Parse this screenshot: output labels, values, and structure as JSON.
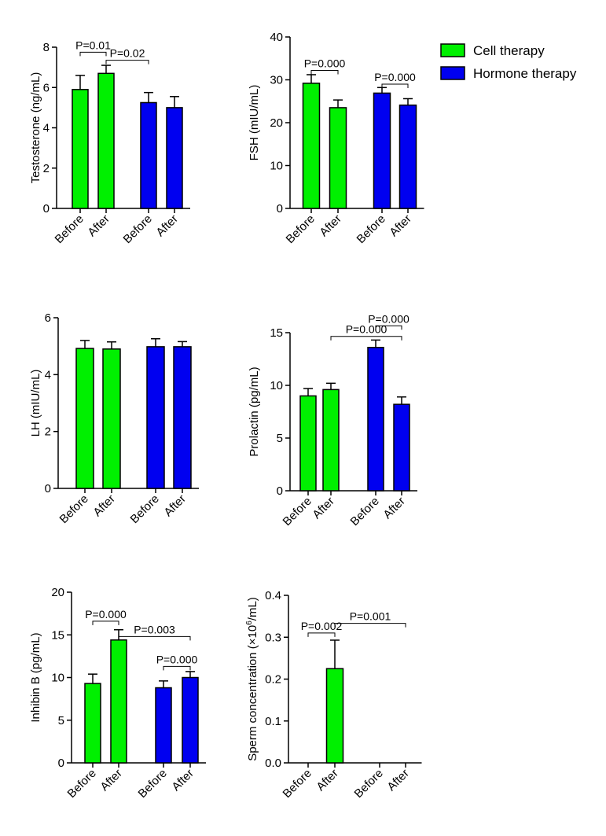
{
  "colors": {
    "cell": "#00f000",
    "hormone": "#0000f0",
    "ink": "#000000"
  },
  "legend": [
    {
      "label": "Cell therapy",
      "series": "cell"
    },
    {
      "label": "Hormone therapy",
      "series": "hormone"
    }
  ],
  "chart_data": [
    {
      "type": "bar",
      "ylabel": "Testosterone (ng/mL)",
      "categories": [
        "Before",
        "After",
        "Before",
        "After"
      ],
      "groups": [
        "cell",
        "cell",
        "hormone",
        "hormone"
      ],
      "values": [
        5.9,
        6.7,
        5.25,
        5.0
      ],
      "errors": [
        0.7,
        0.4,
        0.5,
        0.55
      ],
      "ylim": [
        0,
        8
      ],
      "yticks": [
        0,
        2,
        4,
        6,
        8
      ],
      "yticklabels": [
        "0",
        "2",
        "4",
        "6",
        "8"
      ],
      "annotations": [
        {
          "label": "P=0.01",
          "from": 0,
          "to": 1,
          "y": 7.75
        },
        {
          "label": "P=0.02",
          "from": 1,
          "to": 2,
          "y": 7.35
        }
      ]
    },
    {
      "type": "bar",
      "ylabel": "FSH (mIU/mL)",
      "categories": [
        "Before",
        "After",
        "Before",
        "After"
      ],
      "groups": [
        "cell",
        "cell",
        "hormone",
        "hormone"
      ],
      "values": [
        29.2,
        23.5,
        26.9,
        24.1
      ],
      "errors": [
        2.0,
        1.8,
        1.3,
        1.5
      ],
      "ylim": [
        0,
        40
      ],
      "yticks": [
        0,
        10,
        20,
        30,
        40
      ],
      "yticklabels": [
        "0",
        "10",
        "20",
        "30",
        "40"
      ],
      "annotations": [
        {
          "label": "P=0.000",
          "from": 0,
          "to": 1,
          "y": 32.2
        },
        {
          "label": "P=0.000",
          "from": 2,
          "to": 3,
          "y": 29.0
        }
      ]
    },
    {
      "type": "bar",
      "ylabel": "LH (mIU/mL)",
      "categories": [
        "Before",
        "After",
        "Before",
        "After"
      ],
      "groups": [
        "cell",
        "cell",
        "hormone",
        "hormone"
      ],
      "values": [
        4.92,
        4.9,
        4.98,
        4.98
      ],
      "errors": [
        0.28,
        0.25,
        0.28,
        0.18
      ],
      "ylim": [
        0,
        6
      ],
      "yticks": [
        0,
        2,
        4,
        6
      ],
      "yticklabels": [
        "0",
        "2",
        "4",
        "6"
      ],
      "annotations": []
    },
    {
      "type": "bar",
      "ylabel": "Prolactin (pg/mL)",
      "categories": [
        "Before",
        "After",
        "Before",
        "After"
      ],
      "groups": [
        "cell",
        "cell",
        "hormone",
        "hormone"
      ],
      "values": [
        9.0,
        9.6,
        13.6,
        8.2
      ],
      "errors": [
        0.7,
        0.6,
        0.7,
        0.7
      ],
      "ylim": [
        0,
        15
      ],
      "yticks": [
        0,
        5,
        10,
        15
      ],
      "yticklabels": [
        "0",
        "5",
        "10",
        "15"
      ],
      "annotations": [
        {
          "label": "P=0.000",
          "from": 1,
          "to": 3,
          "y": 14.65
        },
        {
          "label": "P=0.000",
          "from": 2,
          "to": 3,
          "y": 15.65
        }
      ]
    },
    {
      "type": "bar",
      "ylabel": "Inhibin B (pg/mL)",
      "categories": [
        "Before",
        "After",
        "Before",
        "After"
      ],
      "groups": [
        "cell",
        "cell",
        "hormone",
        "hormone"
      ],
      "values": [
        9.3,
        14.4,
        8.8,
        10.0
      ],
      "errors": [
        1.1,
        1.2,
        0.8,
        0.7
      ],
      "ylim": [
        0,
        20
      ],
      "yticks": [
        0,
        5,
        10,
        15,
        20
      ],
      "yticklabels": [
        "0",
        "5",
        "10",
        "15",
        "20"
      ],
      "annotations": [
        {
          "label": "P=0.000",
          "from": 0,
          "to": 1,
          "y": 16.6
        },
        {
          "label": "P=0.003",
          "from": 1,
          "to": 3,
          "y": 14.8
        },
        {
          "label": "P=0.000",
          "from": 2,
          "to": 3,
          "y": 11.3
        }
      ]
    },
    {
      "type": "bar",
      "ylabel_prefix": "Sperm concentration (",
      "ylabel_symbol": "×10",
      "ylabel_sup": "6",
      "ylabel_suffix": "/mL)",
      "categories": [
        "Before",
        "After",
        "Before",
        "After"
      ],
      "groups": [
        "cell",
        "cell",
        "hormone",
        "hormone"
      ],
      "values": [
        0.0,
        0.225,
        0.0,
        0.0
      ],
      "errors": [
        0.0,
        0.068,
        0.0,
        0.0
      ],
      "ylim": [
        0,
        0.4
      ],
      "yticks": [
        0,
        0.1,
        0.2,
        0.3,
        0.4
      ],
      "yticklabels": [
        "0.0",
        "0.1",
        "0.2",
        "0.3",
        "0.4"
      ],
      "annotations": [
        {
          "label": "P=0.002",
          "from": 0,
          "to": 1,
          "y": 0.31
        },
        {
          "label": "P=0.001",
          "from": 1,
          "to": 3,
          "y": 0.333
        }
      ]
    }
  ]
}
